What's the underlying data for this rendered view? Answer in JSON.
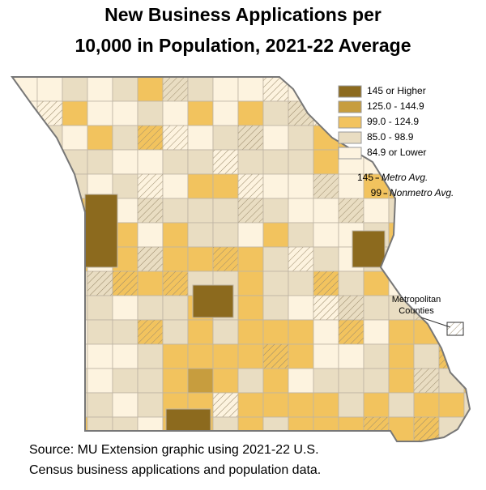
{
  "title": [
    "New Business Applications per",
    "10,000 in Population, 2021-22 Average"
  ],
  "legend": [
    {
      "label": "145 or Higher",
      "color": "#8c6a1e"
    },
    {
      "label": "125.0 - 144.9",
      "color": "#c79d3e"
    },
    {
      "label": "99.0 - 124.9",
      "color": "#f2c35e"
    },
    {
      "label": "85.0 - 98.9",
      "color": "#e9ddc2"
    },
    {
      "label": "84.9 or Lower",
      "color": "#fdf3df"
    }
  ],
  "averages": [
    {
      "number": "145",
      "text": "Metro Avg."
    },
    {
      "number": "99",
      "text": "Nonmetro Avg."
    }
  ],
  "callout": [
    "Metropolitan",
    "Counties"
  ],
  "source": [
    "Source: MU Extension graphic using 2021-22 U.S.",
    "Census business applications and population data."
  ]
}
